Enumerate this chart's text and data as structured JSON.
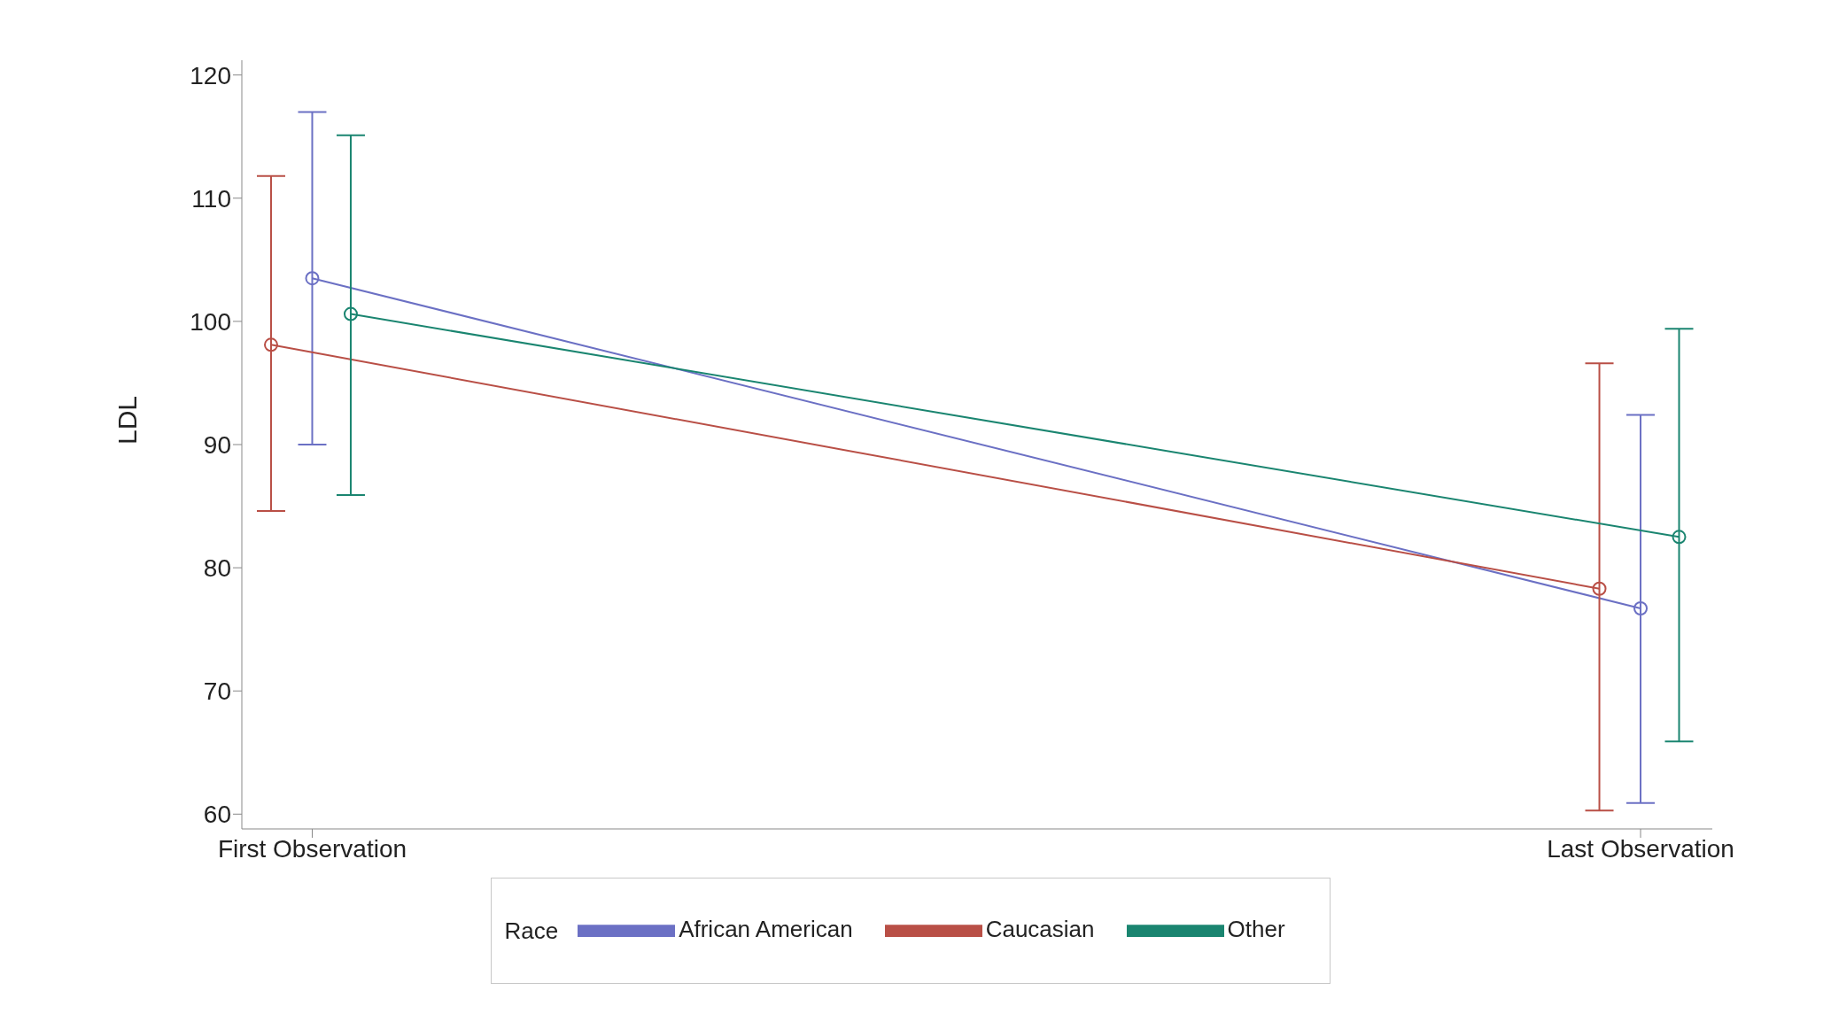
{
  "chart_data": {
    "type": "line",
    "ylabel": "LDL",
    "categories": [
      "First Observation",
      "Last Observation"
    ],
    "legend_title": "Race",
    "ylim": [
      58.8,
      121.2
    ],
    "yticks": [
      60,
      70,
      80,
      90,
      100,
      110,
      120
    ],
    "grid": false,
    "legend": "bottom",
    "marker": "circle",
    "line_style": "solid",
    "series": [
      {
        "name": "African American",
        "color": "#6b70c4",
        "values": [
          103.5,
          76.7
        ],
        "errors": [
          [
            90.0,
            117.0
          ],
          [
            60.9,
            92.4
          ]
        ]
      },
      {
        "name": "Caucasian",
        "color": "#b94f46",
        "values": [
          98.1,
          78.3
        ],
        "errors": [
          [
            84.6,
            111.8
          ],
          [
            60.3,
            96.6
          ]
        ]
      },
      {
        "name": "Other",
        "color": "#1a8570",
        "values": [
          100.6,
          82.5
        ],
        "errors": [
          [
            85.9,
            115.1
          ],
          [
            65.9,
            99.4
          ]
        ]
      }
    ]
  }
}
